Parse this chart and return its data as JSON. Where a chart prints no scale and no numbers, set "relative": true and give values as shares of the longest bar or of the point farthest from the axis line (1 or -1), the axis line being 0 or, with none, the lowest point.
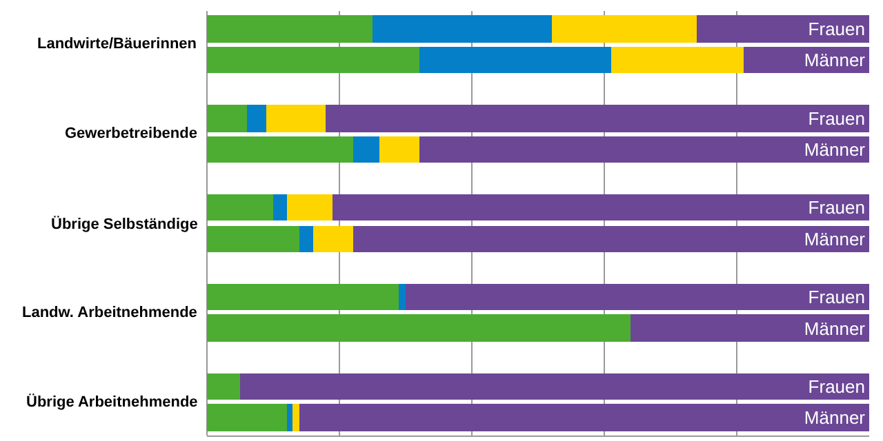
{
  "chart_data": {
    "type": "bar",
    "orientation": "horizontal",
    "stacked": true,
    "relative": true,
    "categories": [
      "Frauen",
      "Männer",
      "Frauen",
      "Männer",
      "Frauen",
      "Männer",
      "Frauen",
      "Männer",
      "Frauen",
      "Männer"
    ],
    "series": [
      {
        "color": "#4cad32",
        "values": [
          0.25,
          0.32,
          0.06,
          0.22,
          0.1,
          0.14,
          0.29,
          0.64,
          0.05,
          0.12
        ]
      },
      {
        "color": "#0580c8",
        "values": [
          0.27,
          0.29,
          0.03,
          0.04,
          0.02,
          0.02,
          0.01,
          null,
          null,
          0.01
        ]
      },
      {
        "color": "#ffd500",
        "values": [
          0.22,
          0.2,
          0.09,
          0.06,
          0.07,
          0.06,
          null,
          null,
          null,
          0.01
        ]
      },
      {
        "color": "#6b4796",
        "values": [
          0.26,
          0.19,
          0.82,
          0.68,
          0.81,
          0.78,
          0.7,
          0.36,
          0.95,
          0.86
        ]
      }
    ],
    "grid": "x",
    "tick_labels": "y",
    "annotations": [
      "Landwirte/Bäuerinnen",
      "Gewerbetreibende",
      "Übrige Selbständige",
      "Landw. Arbeitnehmende",
      "Übrige Arbeitnehmende"
    ]
  }
}
